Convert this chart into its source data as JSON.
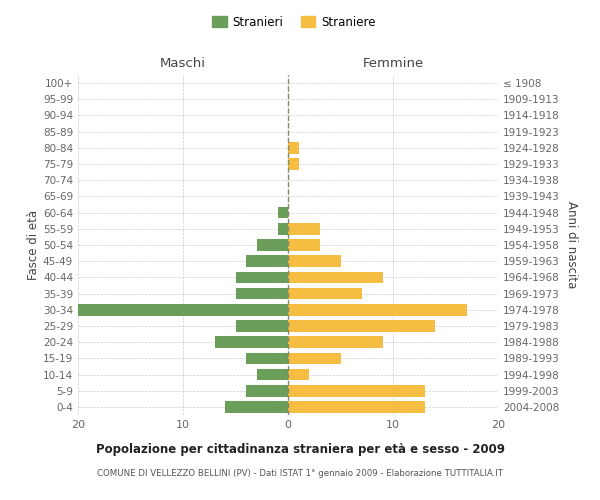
{
  "age_groups": [
    "0-4",
    "5-9",
    "10-14",
    "15-19",
    "20-24",
    "25-29",
    "30-34",
    "35-39",
    "40-44",
    "45-49",
    "50-54",
    "55-59",
    "60-64",
    "65-69",
    "70-74",
    "75-79",
    "80-84",
    "85-89",
    "90-94",
    "95-99",
    "100+"
  ],
  "birth_years": [
    "2004-2008",
    "1999-2003",
    "1994-1998",
    "1989-1993",
    "1984-1988",
    "1979-1983",
    "1974-1978",
    "1969-1973",
    "1964-1968",
    "1959-1963",
    "1954-1958",
    "1949-1953",
    "1944-1948",
    "1939-1943",
    "1934-1938",
    "1929-1933",
    "1924-1928",
    "1919-1923",
    "1914-1918",
    "1909-1913",
    "≤ 1908"
  ],
  "maschi": [
    6,
    4,
    3,
    4,
    7,
    5,
    20,
    5,
    5,
    4,
    3,
    1,
    1,
    0,
    0,
    0,
    0,
    0,
    0,
    0,
    0
  ],
  "femmine": [
    13,
    13,
    2,
    5,
    9,
    14,
    17,
    7,
    9,
    5,
    3,
    3,
    0,
    0,
    0,
    1,
    1,
    0,
    0,
    0,
    0
  ],
  "maschi_color": "#6a9e5a",
  "femmine_color": "#f5be42",
  "title": "Popolazione per cittadinanza straniera per età e sesso - 2009",
  "subtitle": "COMUNE DI VELLEZZO BELLINI (PV) - Dati ISTAT 1° gennaio 2009 - Elaborazione TUTTITALIA.IT",
  "ylabel_left": "Fasce di età",
  "ylabel_right": "Anni di nascita",
  "xlabel_left": "Maschi",
  "xlabel_right": "Femmine",
  "legend_maschi": "Stranieri",
  "legend_femmine": "Straniere",
  "xlim": 20,
  "background_color": "#ffffff",
  "grid_color": "#cccccc"
}
